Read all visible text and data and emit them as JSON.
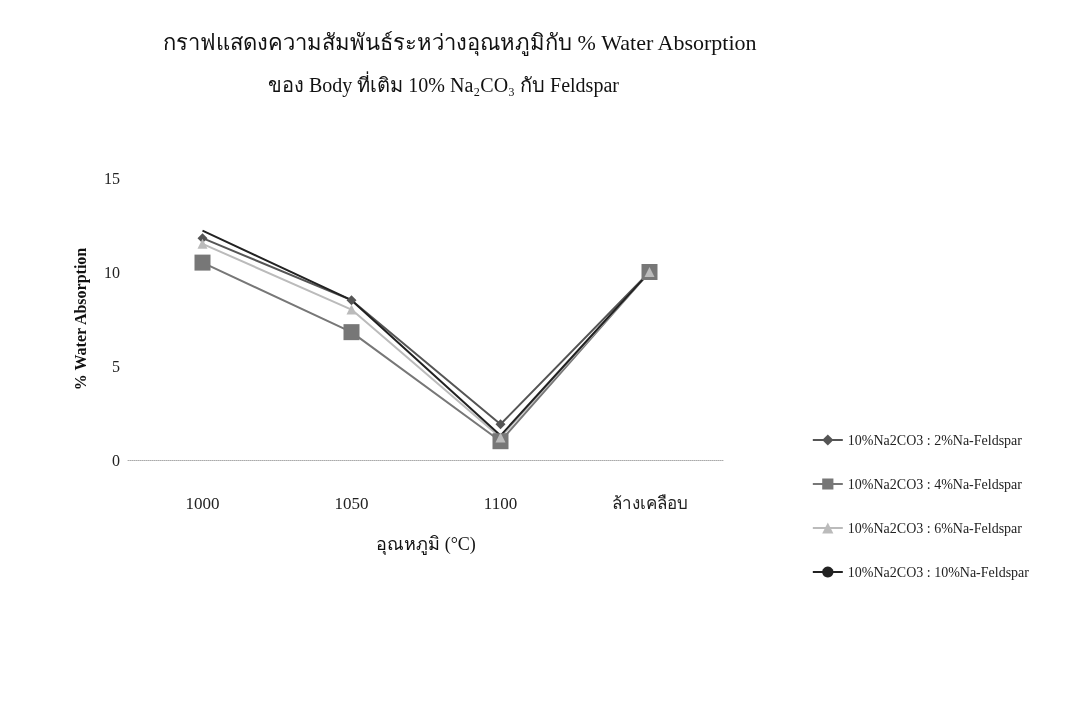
{
  "chart_data": {
    "type": "line",
    "title": "กราฟแสดงความสัมพันธ์ระหว่างอุณหภูมิกับ % Water Absorption",
    "subtitle": "ของ Body ที่เติม 10% Na₂CO₃ กับ Feldspar",
    "xlabel": "อุณหภูมิ (°C)",
    "ylabel": "% Water Absorption",
    "categories": [
      "1000",
      "1050",
      "1100",
      "ล้างเคลือบ"
    ],
    "series": [
      {
        "name": "10%Na2CO3 : 2%Na-Feldspar",
        "color": "#555555",
        "marker": "diamond",
        "values": [
          11.8,
          8.5,
          1.9,
          10.0
        ]
      },
      {
        "name": "10%Na2CO3 : 4%Na-Feldspar",
        "color": "#777777",
        "marker": "square",
        "values": [
          10.5,
          6.8,
          1.0,
          10.0
        ]
      },
      {
        "name": "10%Na2CO3 : 6%Na-Feldspar",
        "color": "#bbbbbb",
        "marker": "triangle",
        "values": [
          11.5,
          8.0,
          1.2,
          10.0
        ]
      },
      {
        "name": "10%Na2CO3 : 10%Na-Feldspar",
        "color": "#222222",
        "marker": "none",
        "values": [
          12.2,
          8.5,
          1.3,
          10.0
        ]
      }
    ],
    "ylim": [
      0,
      15
    ],
    "yticks": [
      0,
      5,
      10,
      15
    ],
    "grid": false,
    "legend": "right"
  }
}
